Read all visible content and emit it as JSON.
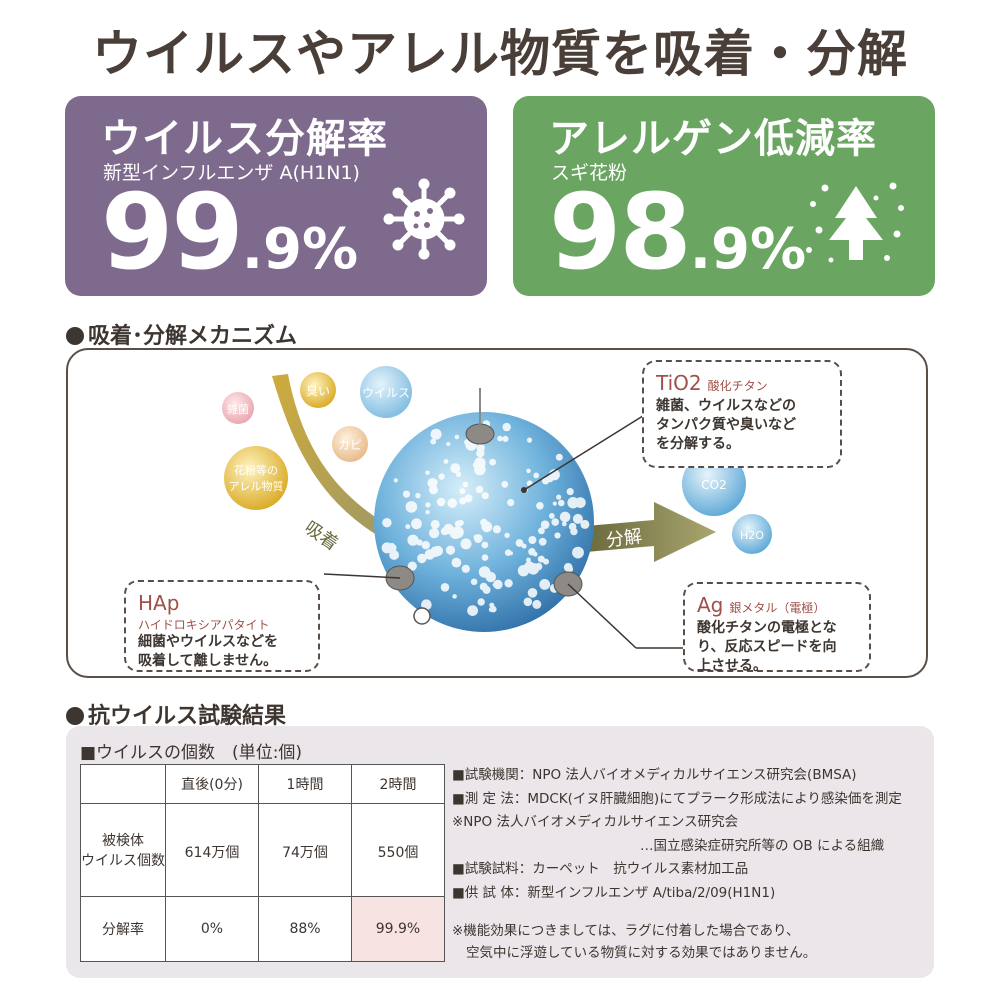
{
  "headline": "ウイルスやアレル物質を吸着・分解",
  "stats": {
    "virus": {
      "title": "ウイルス分解率",
      "subtitle": "新型インフルエンザ A(H1N1)",
      "value_big": "99",
      "value_small": ".9%",
      "icon": "virus-icon",
      "color": "#7e6a8c"
    },
    "allergen": {
      "title": "アレルゲン低減率",
      "subtitle": "スギ花粉",
      "value_big": "98",
      "value_small": ".9%",
      "icon": "tree-snow-icon",
      "color": "#6aa562"
    }
  },
  "mechanism": {
    "heading": "吸着･分解メカニズム",
    "particles": [
      "雑菌",
      "臭い",
      "ウイルス",
      "カビ",
      "花粉等の",
      "アレル物質"
    ],
    "adsorb_label": "吸着",
    "decompose_label": "分解",
    "products": [
      "CO2",
      "H2O"
    ],
    "tio2": {
      "title": "TiO2",
      "subtitle": "酸化チタン",
      "body": [
        "雑菌、ウイルスなどの",
        "タンパク質や臭いなど",
        "を分解する。"
      ]
    },
    "hap": {
      "title": "HAp",
      "subtitle": "ハイドロキシアパタイト",
      "body": [
        "細菌やウイルスなどを",
        "吸着して離しません。"
      ]
    },
    "ag": {
      "title": "Ag",
      "subtitle": "銀メタル（電極）",
      "body": [
        "酸化チタンの電極とな",
        "り、反応スピードを向",
        "上させる。"
      ]
    }
  },
  "test": {
    "heading": "抗ウイルス試験結果",
    "table_caption": "■ウイルスの個数　(単位:個)",
    "columns": [
      "直後(0分)",
      "1時間",
      "2時間"
    ],
    "row_count_label": [
      "被検体",
      "ウイルス個数"
    ],
    "counts": [
      "614万個",
      "74万個",
      "550個"
    ],
    "row_rate_label": "分解率",
    "rates": [
      "0%",
      "88%",
      "99.9%"
    ],
    "notes": [
      "■試験機関：NPO 法人バイオメディカルサイエンス研究会(BMSA)",
      "■測 定 法：MDCK(イヌ肝臓細胞)にてプラーク形成法により感染価を測定",
      "※NPO 法人バイオメディカルサイエンス研究会",
      "…国立感染症研究所等の OB による組織",
      "■試験試料：カーペット　抗ウイルス素材加工品",
      "■供 試 体：新型インフルエンザ A/tiba/2/09(H1N1)"
    ],
    "footnote": [
      "※機能効果につきましては、ラグに付着した場合であり、",
      "空気中に浮遊している物質に対する効果ではありません。"
    ]
  }
}
